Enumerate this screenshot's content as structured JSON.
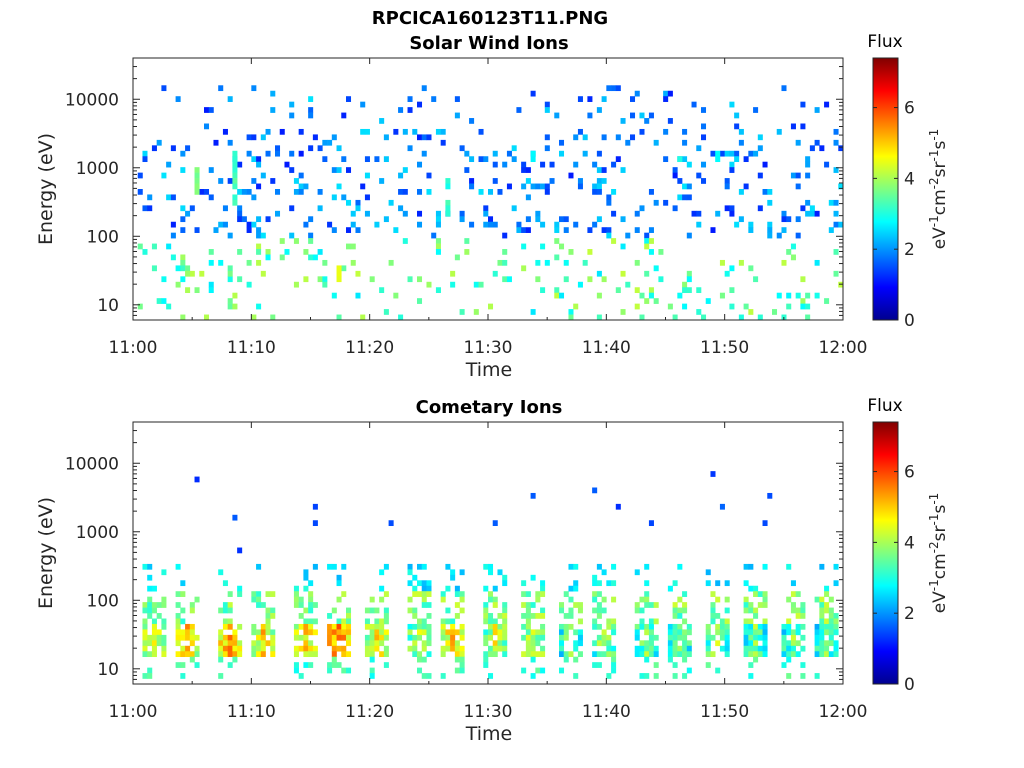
{
  "figure": {
    "title": "RPCICA160123T11.PNG"
  },
  "colormap": "jet",
  "chart_data": [
    {
      "type": "heatmap",
      "title": "Solar Wind Ions",
      "xlabel": "Time",
      "ylabel": "Energy (eV)",
      "xlim": [
        "11:00",
        "12:00"
      ],
      "x_ticks": [
        "11:00",
        "11:10",
        "11:20",
        "11:30",
        "11:40",
        "11:50",
        "12:00"
      ],
      "ylim": [
        6,
        40000
      ],
      "y_scale": "log",
      "y_ticks": [
        {
          "label": "10",
          "value": 10
        },
        {
          "label": "100",
          "value": 100
        },
        {
          "label": "1000",
          "value": 1000
        },
        {
          "label": "10000",
          "value": 10000
        }
      ],
      "colorbar": {
        "title": "Flux",
        "label": "eV-1cm-2sr-1s-1",
        "range": [
          0,
          7.4
        ],
        "ticks": [
          "0",
          "2",
          "4",
          "6"
        ]
      },
      "blobs": [
        {
          "t": 8.5,
          "e": [
            300,
            1800
          ],
          "v": 3.6
        },
        {
          "t": 5.3,
          "e": [
            300,
            1200
          ],
          "v": 3.8
        },
        {
          "t": 26.7,
          "e": [
            200,
            700
          ],
          "v": 3.4
        },
        {
          "t": 33.8,
          "e": [
            1200,
            1800
          ],
          "v": 3.0
        },
        {
          "t": 46.2,
          "e": [
            1200,
            1800
          ],
          "v": 3.1
        },
        {
          "t": 49.5,
          "e": [
            1200,
            1800
          ],
          "v": 2.9
        },
        {
          "t": 10.8,
          "e": [
            25,
            40
          ],
          "v": 4.2
        },
        {
          "t": 17.2,
          "e": [
            20,
            40
          ],
          "v": 4.5
        },
        {
          "t": 8.2,
          "e": [
            25,
            40
          ],
          "v": 4.0
        },
        {
          "t": 4.4,
          "e": [
            25,
            40
          ],
          "v": 4.1
        }
      ],
      "profile": {
        "hi_band_e": [
          90,
          15000
        ],
        "hi_band_v": [
          1.1,
          2.6
        ],
        "hi_density": 0.11,
        "lo_band_e": [
          6,
          90
        ],
        "lo_band_v": [
          2.6,
          4.2
        ],
        "lo_density": 0.085
      }
    },
    {
      "type": "heatmap",
      "title": "Cometary Ions",
      "xlabel": "Time",
      "ylabel": "Energy (eV)",
      "xlim": [
        "11:00",
        "12:00"
      ],
      "x_ticks": [
        "11:00",
        "11:10",
        "11:20",
        "11:30",
        "11:40",
        "11:50",
        "12:00"
      ],
      "ylim": [
        6,
        40000
      ],
      "y_scale": "log",
      "y_ticks": [
        {
          "label": "10",
          "value": 10
        },
        {
          "label": "100",
          "value": 100
        },
        {
          "label": "1000",
          "value": 1000
        },
        {
          "label": "10000",
          "value": 10000
        }
      ],
      "colorbar": {
        "title": "Flux",
        "label": "eV-1cm-2sr-1s-1",
        "range": [
          0,
          7.4
        ],
        "ticks": [
          "0",
          "2",
          "4",
          "6"
        ]
      },
      "bursts": [
        {
          "t": 1.5,
          "v": 5.3
        },
        {
          "t": 4.4,
          "v": 5.6
        },
        {
          "t": 8.1,
          "v": 6.1
        },
        {
          "t": 11.0,
          "v": 5.5
        },
        {
          "t": 14.2,
          "v": 5.6
        },
        {
          "t": 17.3,
          "v": 6.3
        },
        {
          "t": 20.5,
          "v": 5.4
        },
        {
          "t": 23.8,
          "v": 4.8
        },
        {
          "t": 26.9,
          "v": 5.6
        },
        {
          "t": 30.2,
          "v": 5.0
        },
        {
          "t": 33.5,
          "v": 5.0
        },
        {
          "t": 36.6,
          "v": 4.3
        },
        {
          "t": 39.7,
          "v": 4.6
        },
        {
          "t": 43.0,
          "v": 4.4
        },
        {
          "t": 46.1,
          "v": 4.4
        },
        {
          "t": 49.3,
          "v": 4.5
        },
        {
          "t": 52.5,
          "v": 4.3
        },
        {
          "t": 55.7,
          "v": 4.3
        },
        {
          "t": 58.5,
          "v": 4.2
        }
      ],
      "sparse_high": [
        {
          "t": 5.3,
          "e": 5800
        },
        {
          "t": 8.3,
          "e": 1500
        },
        {
          "t": 8.8,
          "e": 520
        },
        {
          "t": 15.2,
          "e": 2300
        },
        {
          "t": 15.3,
          "e": 1300
        },
        {
          "t": 21.6,
          "e": 1250
        },
        {
          "t": 30.5,
          "e": 1350
        },
        {
          "t": 33.7,
          "e": 3200
        },
        {
          "t": 38.7,
          "e": 4300
        },
        {
          "t": 40.7,
          "e": 2400
        },
        {
          "t": 43.5,
          "e": 1400
        },
        {
          "t": 48.8,
          "e": 7600
        },
        {
          "t": 49.5,
          "e": 2300
        },
        {
          "t": 53.6,
          "e": 3500
        },
        {
          "t": 53.2,
          "e": 1300
        }
      ]
    }
  ]
}
